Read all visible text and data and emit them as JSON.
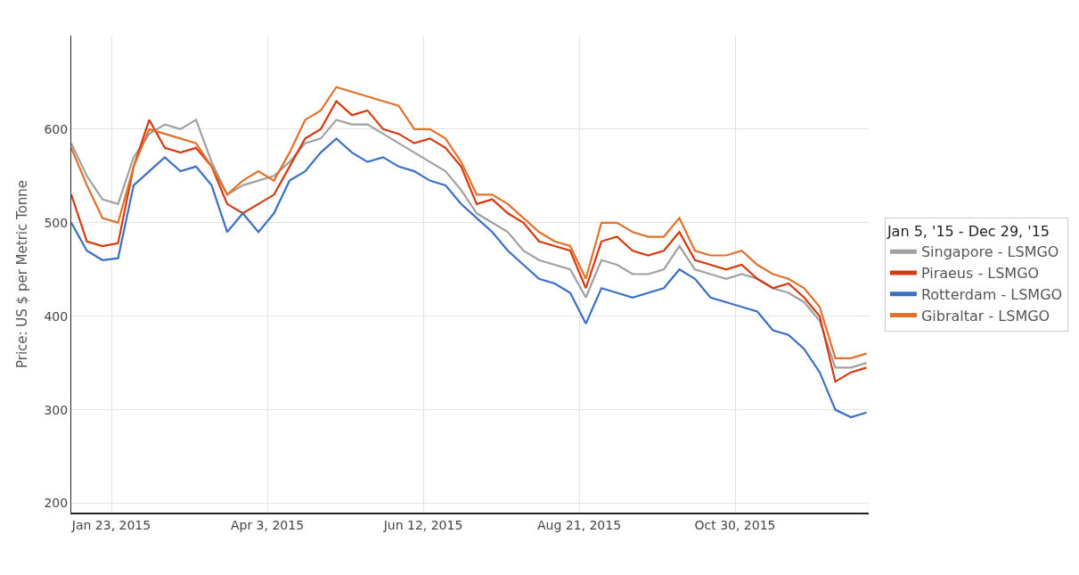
{
  "chart_data": {
    "type": "line",
    "ylabel": "Price: US $ per Metric Tonne",
    "legend_title": "Jan 5, '15 - Dec 29, '15",
    "x": [
      "2015-01-05",
      "2015-01-12",
      "2015-01-19",
      "2015-01-26",
      "2015-02-02",
      "2015-02-09",
      "2015-02-16",
      "2015-02-23",
      "2015-03-02",
      "2015-03-09",
      "2015-03-16",
      "2015-03-23",
      "2015-03-30",
      "2015-04-06",
      "2015-04-13",
      "2015-04-20",
      "2015-04-27",
      "2015-05-04",
      "2015-05-11",
      "2015-05-18",
      "2015-05-25",
      "2015-06-01",
      "2015-06-08",
      "2015-06-15",
      "2015-06-22",
      "2015-06-29",
      "2015-07-06",
      "2015-07-13",
      "2015-07-20",
      "2015-07-27",
      "2015-08-03",
      "2015-08-10",
      "2015-08-17",
      "2015-08-24",
      "2015-08-31",
      "2015-09-07",
      "2015-09-14",
      "2015-09-21",
      "2015-09-28",
      "2015-10-05",
      "2015-10-12",
      "2015-10-19",
      "2015-10-26",
      "2015-11-02",
      "2015-11-09",
      "2015-11-16",
      "2015-11-23",
      "2015-11-30",
      "2015-12-07",
      "2015-12-14",
      "2015-12-21",
      "2015-12-28"
    ],
    "series": [
      {
        "name": "Singapore - LSMGO",
        "color": "#a0a0a0",
        "values": [
          585,
          550,
          525,
          520,
          570,
          595,
          605,
          600,
          610,
          565,
          530,
          540,
          545,
          550,
          565,
          585,
          590,
          610,
          605,
          605,
          595,
          585,
          575,
          565,
          555,
          535,
          510,
          500,
          490,
          470,
          460,
          455,
          450,
          420,
          460,
          455,
          445,
          445,
          450,
          475,
          450,
          445,
          440,
          445,
          440,
          430,
          425,
          415,
          395,
          345,
          345,
          350
        ]
      },
      {
        "name": "Piraeus - LSMGO",
        "color": "#d43a0f",
        "values": [
          530,
          480,
          475,
          478,
          560,
          610,
          580,
          575,
          580,
          560,
          520,
          510,
          520,
          530,
          560,
          590,
          600,
          630,
          615,
          620,
          600,
          595,
          585,
          590,
          580,
          560,
          520,
          525,
          510,
          500,
          480,
          475,
          470,
          430,
          480,
          485,
          470,
          465,
          470,
          490,
          460,
          455,
          450,
          455,
          440,
          430,
          435,
          420,
          400,
          330,
          340,
          345
        ]
      },
      {
        "name": "Rotterdam - LSMGO",
        "color": "#3a6fc4",
        "values": [
          500,
          470,
          460,
          462,
          540,
          555,
          570,
          555,
          560,
          540,
          490,
          510,
          490,
          510,
          545,
          555,
          575,
          590,
          575,
          565,
          570,
          560,
          555,
          545,
          540,
          520,
          505,
          490,
          470,
          455,
          440,
          435,
          425,
          392,
          430,
          425,
          420,
          425,
          430,
          450,
          440,
          420,
          415,
          410,
          405,
          385,
          380,
          365,
          340,
          300,
          292,
          297
        ]
      },
      {
        "name": "Gibraltar - LSMGO",
        "color": "#e0712a",
        "values": [
          580,
          540,
          505,
          500,
          560,
          600,
          595,
          590,
          585,
          560,
          530,
          545,
          555,
          545,
          575,
          610,
          620,
          645,
          640,
          635,
          630,
          625,
          600,
          600,
          590,
          565,
          530,
          530,
          520,
          505,
          490,
          480,
          475,
          440,
          500,
          500,
          490,
          485,
          485,
          505,
          470,
          465,
          465,
          470,
          455,
          445,
          440,
          430,
          410,
          355,
          355,
          360
        ]
      }
    ],
    "xlim": [
      "2015-01-05",
      "2015-12-29"
    ],
    "xticks": [
      {
        "value": "2015-01-23",
        "label": "Jan 23, 2015"
      },
      {
        "value": "2015-04-03",
        "label": "Apr 3, 2015"
      },
      {
        "value": "2015-06-12",
        "label": "Jun 12, 2015"
      },
      {
        "value": "2015-08-21",
        "label": "Aug 21, 2015"
      },
      {
        "value": "2015-10-30",
        "label": "Oct 30, 2015"
      }
    ],
    "ylim": [
      190,
      700
    ],
    "yticks": [
      200,
      300,
      400,
      500,
      600
    ],
    "grid": true,
    "legend": "right",
    "marker": "none",
    "line_style": "solid"
  }
}
